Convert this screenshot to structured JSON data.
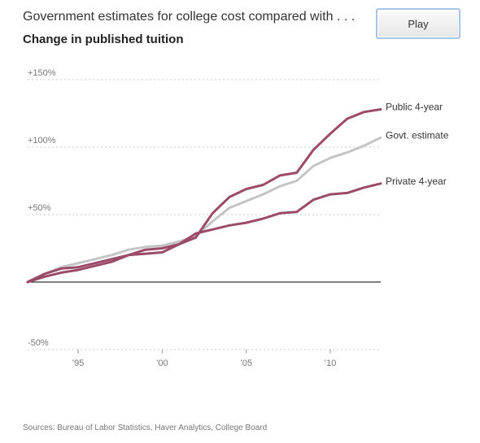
{
  "header": {
    "title": "Government estimates for college cost compared with . . .",
    "subtitle": "Change in published tuition"
  },
  "controls": {
    "play_label": "Play"
  },
  "source": "Sources: Bureau of Labor Statistics, Haver Analytics, College Board",
  "colors": {
    "public": "#9b4a67",
    "private": "#9b4a67",
    "government": "#c4c4c4",
    "gridline": "#c8c8c8",
    "baseline": "#000000"
  },
  "chart_data": {
    "type": "line",
    "title": "Change in published tuition",
    "x": [
      1992,
      1993,
      1994,
      1995,
      1996,
      1997,
      1998,
      1999,
      2000,
      2001,
      2002,
      2003,
      2004,
      2005,
      2006,
      2007,
      2008,
      2009,
      2010,
      2011,
      2012,
      2013
    ],
    "xlim": [
      1992,
      2013
    ],
    "ylim": [
      -50,
      150
    ],
    "y_ticks": [
      {
        "value": 150,
        "label": "+150%"
      },
      {
        "value": 100,
        "label": "+100%"
      },
      {
        "value": 50,
        "label": "+50%"
      },
      {
        "value": -50,
        "label": "-50%"
      }
    ],
    "x_ticks": [
      {
        "value": 1995,
        "label": "’95"
      },
      {
        "value": 2000,
        "label": "’00"
      },
      {
        "value": 2005,
        "label": "’05"
      },
      {
        "value": 2010,
        "label": "’10"
      }
    ],
    "grid": true,
    "series": [
      {
        "name": "Public 4-year",
        "color_key": "public",
        "values": [
          0,
          6,
          10,
          11,
          14,
          17,
          20,
          24,
          25,
          28,
          33,
          51,
          63,
          69,
          72,
          79,
          81,
          98,
          110,
          121,
          126,
          128
        ]
      },
      {
        "name": "Govt. estimate",
        "color_key": "government",
        "values": [
          0,
          6,
          11,
          14,
          17,
          20,
          24,
          26,
          27,
          30,
          34,
          45,
          55,
          60,
          65,
          71,
          75,
          86,
          92,
          96,
          101,
          107
        ]
      },
      {
        "name": "Private 4-year",
        "color_key": "private",
        "values": [
          0,
          4,
          7,
          9,
          12,
          15,
          20,
          21,
          22,
          28,
          36,
          39,
          42,
          44,
          47,
          51,
          52,
          61,
          65,
          66,
          70,
          73
        ]
      }
    ]
  }
}
